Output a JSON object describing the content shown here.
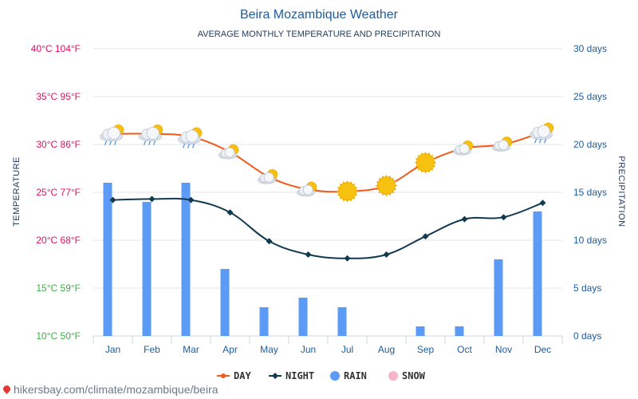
{
  "chart_data": {
    "type": "bar",
    "title": "Beira Mozambique Weather",
    "subtitle": "AVERAGE MONTHLY TEMPERATURE AND PRECIPITATION",
    "ylabel_left": "TEMPERATURE",
    "ylabel_right": "PRECIPITATION",
    "categories": [
      "Jan",
      "Feb",
      "Mar",
      "Apr",
      "May",
      "Jun",
      "Jul",
      "Aug",
      "Sep",
      "Oct",
      "Nov",
      "Dec"
    ],
    "left_axis": {
      "range": [
        10,
        40
      ],
      "ticks": [
        10,
        15,
        20,
        25,
        30,
        35,
        40
      ],
      "tick_labels": [
        "10°C 50°F",
        "15°C 59°F",
        "20°C 68°F",
        "25°C 77°F",
        "30°C 86°F",
        "35°C 95°F",
        "40°C 104°F"
      ],
      "tick_colors": [
        "#3cb043",
        "#3cb043",
        "#e0115f",
        "#e0115f",
        "#e0115f",
        "#e0115f",
        "#e0115f"
      ]
    },
    "right_axis": {
      "range": [
        0,
        30
      ],
      "ticks": [
        0,
        5,
        10,
        15,
        20,
        25,
        30
      ],
      "tick_labels": [
        "0 days",
        "5 days",
        "10 days",
        "15 days",
        "20 days",
        "25 days",
        "30 days"
      ]
    },
    "series": [
      {
        "name": "DAY",
        "type": "line",
        "axis": "left",
        "color": "#f05a1a",
        "values": [
          31.1,
          31.1,
          30.8,
          29.2,
          26.6,
          25.3,
          25.1,
          25.7,
          28.1,
          29.6,
          30.0,
          31.3
        ]
      },
      {
        "name": "NIGHT",
        "type": "line",
        "axis": "left",
        "color": "#123a4f",
        "values": [
          24.2,
          24.3,
          24.2,
          22.9,
          19.9,
          18.5,
          18.1,
          18.5,
          20.4,
          22.2,
          22.4,
          23.9
        ]
      },
      {
        "name": "RAIN",
        "type": "bar",
        "axis": "right",
        "color": "#5b9bf5",
        "values": [
          16,
          14,
          16,
          7,
          3,
          4,
          3,
          0,
          1,
          1,
          8,
          13
        ]
      },
      {
        "name": "SNOW",
        "type": "bar",
        "axis": "right",
        "color": "#f7b4c6",
        "values": [
          0,
          0,
          0,
          0,
          0,
          0,
          0,
          0,
          0,
          0,
          0,
          0
        ]
      }
    ],
    "weather_icons": [
      "cloud-sun-rain-icon",
      "cloud-sun-rain-icon",
      "cloud-sun-rain-icon",
      "sun-cloud-icon",
      "sun-cloud-icon",
      "sun-cloud-icon",
      "sun-icon",
      "sun-icon",
      "sun-icon",
      "sun-cloud-icon",
      "sun-cloud-icon",
      "cloud-sun-rain-icon"
    ],
    "legend": [
      "DAY",
      "NIGHT",
      "RAIN",
      "SNOW"
    ],
    "legend_position": "bottom",
    "grid": true
  },
  "source": {
    "text": "hikersbay.com/climate/mozambique/beira"
  },
  "colors": {
    "grid": "#e6e6e6",
    "axis_text": "#1f5b99",
    "sun": "#f7c20f",
    "cloud": "#dde3ea"
  }
}
